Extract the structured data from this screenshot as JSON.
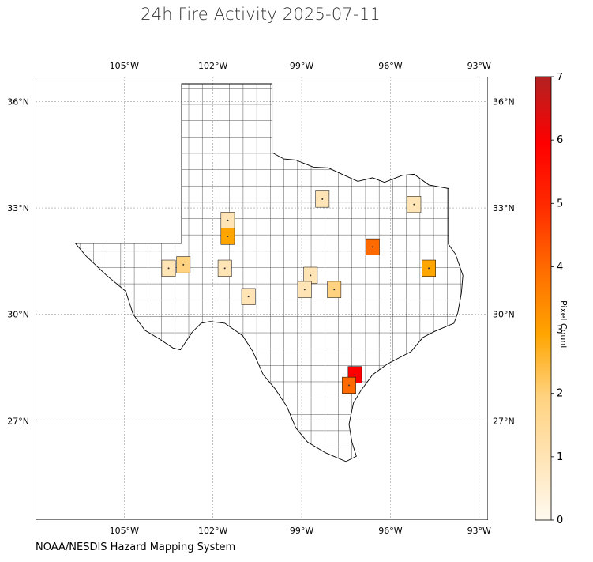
{
  "title": "24h Fire Activity 2025-07-11",
  "source": "NOAA/NESDIS Hazard Mapping System",
  "map": {
    "lon_range": [
      -108,
      -92.7
    ],
    "lat_range": [
      24.2,
      36.7
    ],
    "lon_ticks": [
      {
        "value": -105,
        "label": "105°W"
      },
      {
        "value": -102,
        "label": "102°W"
      },
      {
        "value": -99,
        "label": "99°W"
      },
      {
        "value": -96,
        "label": "96°W"
      },
      {
        "value": -93,
        "label": "93°W"
      }
    ],
    "lat_ticks": [
      {
        "value": 36,
        "label": "36°N"
      },
      {
        "value": 33,
        "label": "33°N"
      },
      {
        "value": 30,
        "label": "30°N"
      },
      {
        "value": 27,
        "label": "27°N"
      }
    ]
  },
  "colorbar": {
    "label": "Pixel Count",
    "min": 0,
    "max": 7,
    "ticks": [
      "0",
      "1",
      "2",
      "3",
      "4",
      "5",
      "6",
      "7"
    ],
    "stops": [
      "#fffaf0",
      "#ffe4b5",
      "#ffd27f",
      "#ffa500",
      "#ff6a00",
      "#ff2a00",
      "#ff0000",
      "#b22222"
    ]
  },
  "fire_counties": [
    {
      "lon": -98.3,
      "lat": 33.25,
      "count": 1
    },
    {
      "lon": -95.2,
      "lat": 33.1,
      "count": 1
    },
    {
      "lon": -101.5,
      "lat": 32.65,
      "count": 1
    },
    {
      "lon": -101.5,
      "lat": 32.2,
      "count": 3
    },
    {
      "lon": -96.6,
      "lat": 31.9,
      "count": 4
    },
    {
      "lon": -103.5,
      "lat": 31.3,
      "count": 1
    },
    {
      "lon": -103.0,
      "lat": 31.4,
      "count": 2
    },
    {
      "lon": -101.6,
      "lat": 31.3,
      "count": 1
    },
    {
      "lon": -98.7,
      "lat": 31.1,
      "count": 1
    },
    {
      "lon": -94.7,
      "lat": 31.3,
      "count": 3
    },
    {
      "lon": -98.9,
      "lat": 30.7,
      "count": 1
    },
    {
      "lon": -97.9,
      "lat": 30.7,
      "count": 2
    },
    {
      "lon": -100.8,
      "lat": 30.5,
      "count": 1
    },
    {
      "lon": -97.2,
      "lat": 28.3,
      "count": 6
    },
    {
      "lon": -97.4,
      "lat": 28.0,
      "count": 4
    }
  ]
}
